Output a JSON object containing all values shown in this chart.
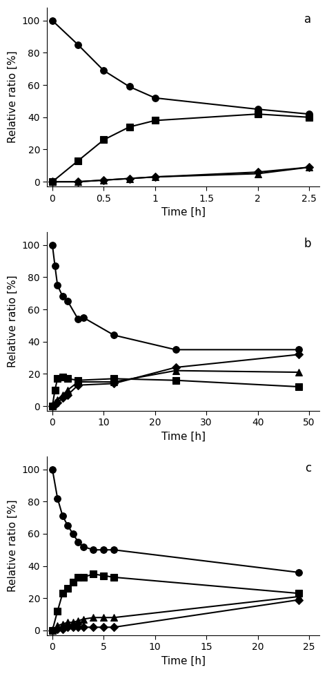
{
  "panels": [
    {
      "label": "a",
      "xlabel": "Time [h]",
      "ylabel": "Relative ratio [%]",
      "xlim": [
        -0.05,
        2.6
      ],
      "ylim": [
        -3,
        108
      ],
      "xticks": [
        0,
        0.5,
        1.0,
        1.5,
        2.0,
        2.5
      ],
      "xtick_labels": [
        "0",
        "0.5",
        "1",
        "1.5",
        "2",
        "2.5"
      ],
      "yticks": [
        0,
        20,
        40,
        60,
        80,
        100
      ],
      "series": [
        {
          "x": [
            0,
            0.25,
            0.5,
            0.75,
            1.0,
            2.0,
            2.5
          ],
          "y": [
            100,
            85,
            69,
            59,
            52,
            45,
            42
          ],
          "marker": "o",
          "markersize": 7,
          "linewidth": 1.5
        },
        {
          "x": [
            0,
            0.25,
            0.5,
            0.75,
            1.0,
            2.0,
            2.5
          ],
          "y": [
            0,
            13,
            26,
            34,
            38,
            42,
            40
          ],
          "marker": "s",
          "markersize": 7,
          "linewidth": 1.5
        },
        {
          "x": [
            0,
            0.25,
            0.5,
            0.75,
            1.0,
            2.0,
            2.5
          ],
          "y": [
            0,
            0,
            1,
            2,
            3,
            5,
            9
          ],
          "marker": "^",
          "markersize": 7,
          "linewidth": 1.5
        },
        {
          "x": [
            0,
            0.25,
            0.5,
            0.75,
            1.0,
            2.0,
            2.5
          ],
          "y": [
            0,
            0,
            1,
            2,
            3,
            6,
            9
          ],
          "marker": "D",
          "markersize": 6,
          "linewidth": 1.5
        }
      ]
    },
    {
      "label": "b",
      "xlabel": "Time [h]",
      "ylabel": "Relative ratio [%]",
      "xlim": [
        -1,
        52
      ],
      "ylim": [
        -3,
        108
      ],
      "xticks": [
        0,
        10,
        20,
        30,
        40,
        50
      ],
      "xtick_labels": [
        "0",
        "10",
        "20",
        "30",
        "40",
        "50"
      ],
      "yticks": [
        0,
        20,
        40,
        60,
        80,
        100
      ],
      "series": [
        {
          "x": [
            0,
            0.5,
            1,
            2,
            3,
            5,
            6,
            12,
            24,
            48
          ],
          "y": [
            100,
            87,
            75,
            68,
            65,
            54,
            55,
            44,
            35,
            35
          ],
          "marker": "o",
          "markersize": 7,
          "linewidth": 1.5
        },
        {
          "x": [
            0,
            0.5,
            1,
            2,
            3,
            5,
            12,
            24,
            48
          ],
          "y": [
            0,
            10,
            17,
            18,
            17,
            16,
            17,
            16,
            12
          ],
          "marker": "s",
          "markersize": 7,
          "linewidth": 1.5
        },
        {
          "x": [
            0,
            0.5,
            1,
            2,
            3,
            5,
            12,
            24,
            48
          ],
          "y": [
            0,
            2,
            4,
            7,
            10,
            15,
            15,
            22,
            21
          ],
          "marker": "^",
          "markersize": 7,
          "linewidth": 1.5
        },
        {
          "x": [
            0,
            0.5,
            1,
            2,
            3,
            5,
            12,
            24,
            48
          ],
          "y": [
            0,
            1,
            2,
            5,
            7,
            13,
            14,
            24,
            32
          ],
          "marker": "D",
          "markersize": 6,
          "linewidth": 1.5
        }
      ]
    },
    {
      "label": "c",
      "xlabel": "Time [h]",
      "ylabel": "Relative ratio [%]",
      "xlim": [
        -0.5,
        26
      ],
      "ylim": [
        -3,
        108
      ],
      "xticks": [
        0,
        5,
        10,
        15,
        20,
        25
      ],
      "xtick_labels": [
        "0",
        "5",
        "10",
        "15",
        "20",
        "25"
      ],
      "yticks": [
        0,
        20,
        40,
        60,
        80,
        100
      ],
      "series": [
        {
          "x": [
            0,
            0.5,
            1,
            1.5,
            2,
            2.5,
            3,
            4,
            5,
            6,
            24
          ],
          "y": [
            100,
            82,
            71,
            65,
            60,
            55,
            52,
            50,
            50,
            50,
            36
          ],
          "marker": "o",
          "markersize": 7,
          "linewidth": 1.5
        },
        {
          "x": [
            0,
            0.5,
            1,
            1.5,
            2,
            2.5,
            3,
            4,
            5,
            6,
            24
          ],
          "y": [
            0,
            12,
            23,
            26,
            30,
            33,
            33,
            35,
            34,
            33,
            23
          ],
          "marker": "s",
          "markersize": 7,
          "linewidth": 1.5
        },
        {
          "x": [
            0,
            0.5,
            1,
            1.5,
            2,
            2.5,
            3,
            4,
            5,
            6,
            24
          ],
          "y": [
            0,
            3,
            4,
            5,
            5,
            6,
            7,
            8,
            8,
            8,
            21
          ],
          "marker": "^",
          "markersize": 7,
          "linewidth": 1.5
        },
        {
          "x": [
            0,
            0.5,
            1,
            1.5,
            2,
            2.5,
            3,
            4,
            5,
            6,
            24
          ],
          "y": [
            0,
            1,
            1,
            2,
            2,
            2,
            2,
            2,
            2,
            2,
            19
          ],
          "marker": "D",
          "markersize": 6,
          "linewidth": 1.5
        }
      ]
    }
  ],
  "line_color": "#000000",
  "fill_color": "#000000",
  "background_color": "#ffffff",
  "label_fontsize": 11,
  "tick_fontsize": 10,
  "panel_label_fontsize": 12
}
